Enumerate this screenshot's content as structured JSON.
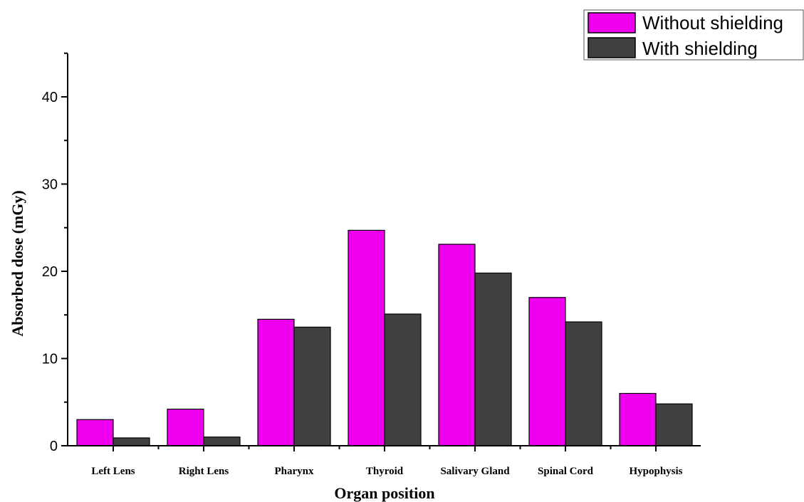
{
  "chart_data": {
    "type": "bar",
    "title": "",
    "xlabel": "Organ position",
    "ylabel": "Absorbed dose (mGy)",
    "ylim": [
      0,
      45
    ],
    "yticks": [
      0,
      10,
      20,
      30,
      40
    ],
    "grid": false,
    "legend": "top-right",
    "categories": [
      "Left Lens",
      "Right Lens",
      "Pharynx",
      "Thyroid",
      "Salivary Gland",
      "Spinal Cord",
      "Hypophysis"
    ],
    "series": [
      {
        "name": "Without shielding",
        "color": "#ee00ee",
        "values": [
          3.0,
          4.2,
          14.5,
          24.7,
          23.1,
          17.0,
          6.0
        ]
      },
      {
        "name": "With shielding",
        "color": "#404040",
        "values": [
          0.9,
          1.0,
          13.6,
          15.1,
          19.8,
          14.2,
          4.8
        ]
      }
    ]
  }
}
